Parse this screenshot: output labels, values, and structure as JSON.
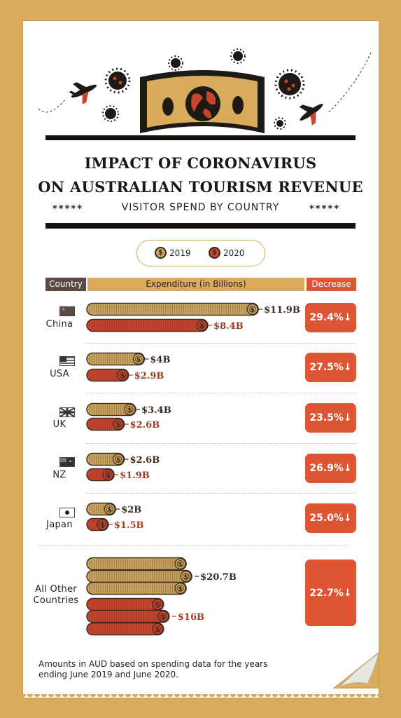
{
  "title_line1": "IMPACT OF CORONAVIRUS",
  "title_line2": "ON AUSTRALIAN TOURISM REVENUE",
  "subtitle": "VISITOR SPEND BY COUNTRY",
  "stars": "*****",
  "legend": [
    {
      "label": "2019",
      "color": "#caa55e"
    },
    {
      "label": "2020",
      "color": "#c8442d"
    }
  ],
  "headers": {
    "country": "Country",
    "expenditure": "Expenditure (in Billions)",
    "decrease": "Decrease"
  },
  "colors": {
    "gold": "#caa55e",
    "red": "#c8442d",
    "box": "#dd5533",
    "dark_label": "#3b2a1f",
    "red_label": "#a33b23",
    "header_bg": "#d8ab5d"
  },
  "chart_data": {
    "type": "bar",
    "categories": [
      "China",
      "USA",
      "UK",
      "NZ",
      "Japan",
      "All Other Countries"
    ],
    "series": [
      {
        "name": "2019",
        "values": [
          11.9,
          4,
          3.4,
          2.6,
          2,
          20.7
        ],
        "labels": [
          "$11.9B",
          "$4B",
          "$3.4B",
          "$2.6B",
          "$2B",
          "$20.7B"
        ]
      },
      {
        "name": "2020",
        "values": [
          8.4,
          2.9,
          2.6,
          1.9,
          1.5,
          16
        ],
        "labels": [
          "$8.4B",
          "$2.9B",
          "$2.6B",
          "$1.9B",
          "$1.5B",
          "$16B"
        ]
      }
    ],
    "decrease": [
      "29.4%↓",
      "27.5%↓",
      "23.5%↓",
      "26.9%↓",
      "25.0%↓",
      "22.7%↓"
    ]
  },
  "countries": [
    {
      "name": "China",
      "flag": "china-flag-icon"
    },
    {
      "name": "USA",
      "flag": "usa-flag-icon"
    },
    {
      "name": "UK",
      "flag": "uk-flag-icon"
    },
    {
      "name": "NZ",
      "flag": "nz-flag-icon"
    },
    {
      "name": "Japan",
      "flag": "japan-flag-icon"
    }
  ],
  "other_label_line1": "All Other",
  "other_label_line2": "Countries",
  "footnote": "Amounts in AUD based on spending data for the years ending June 2019 and June 2020."
}
